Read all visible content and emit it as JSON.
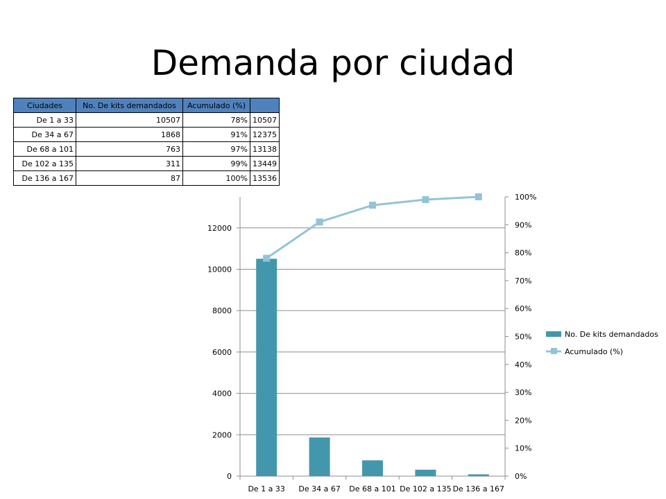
{
  "slide": {
    "title": "Demanda por ciudad"
  },
  "table": {
    "headers": [
      "Ciudades",
      "No. De kits demandados",
      "Acumulado (%)",
      ""
    ],
    "rows": [
      [
        "De 1 a 33",
        "10507",
        "78%",
        "10507"
      ],
      [
        "De 34 a 67",
        "1868",
        "91%",
        "12375"
      ],
      [
        "De 68 a 101",
        "763",
        "97%",
        "13138"
      ],
      [
        "De 102 a 135",
        "311",
        "99%",
        "13449"
      ],
      [
        "De 136 a 167",
        "87",
        "100%",
        "13536"
      ]
    ]
  },
  "chart_data": {
    "type": "bar",
    "categories": [
      "De 1 a 33",
      "De 34 a 67",
      "De 68 a 101",
      "De 102 a 135",
      "De 136 a 167"
    ],
    "series": [
      {
        "name": "No. De kits demandados",
        "type": "bar",
        "axis": "left",
        "color": "#4397ad",
        "values": [
          10507,
          1868,
          763,
          311,
          87
        ]
      },
      {
        "name": "Acumulado (%)",
        "type": "line",
        "axis": "right",
        "color": "#93c3d9",
        "values": [
          0.78,
          0.91,
          0.97,
          0.99,
          1.0
        ]
      }
    ],
    "y_left": {
      "min": 0,
      "max": 13500,
      "ticks": [
        0,
        2000,
        4000,
        6000,
        8000,
        10000,
        12000
      ]
    },
    "y_right": {
      "min": 0,
      "max": 1.0,
      "ticks": [
        "0%",
        "10%",
        "20%",
        "30%",
        "40%",
        "50%",
        "60%",
        "70%",
        "80%",
        "90%",
        "100%"
      ]
    },
    "grid": true,
    "legend": "right"
  }
}
